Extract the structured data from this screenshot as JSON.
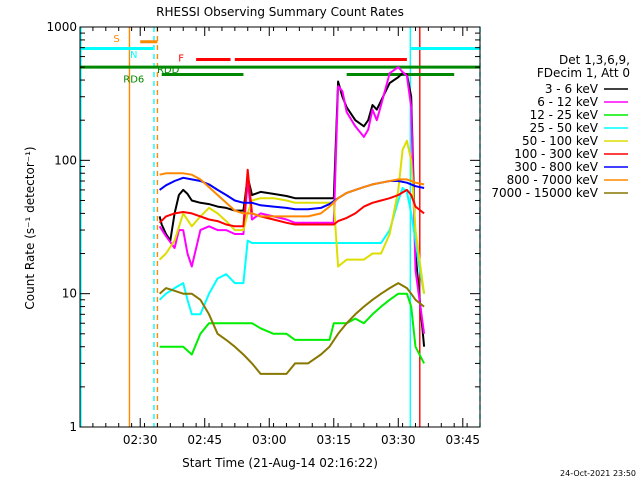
{
  "chart_data": {
    "type": "line",
    "title": "RHESSI Observing Summary Count Rates",
    "xlabel": "Start Time (21-Aug-14 02:16:22)",
    "ylabel": "Count Rate (s⁻¹ detector⁻¹)",
    "y_scale": "log",
    "ylim": [
      1,
      1000
    ],
    "y_ticks": [
      1,
      10,
      100,
      1000
    ],
    "y_tick_labels": [
      "1",
      "10",
      "100",
      "1000"
    ],
    "x_units": "minutes after 02:16:22",
    "xlim": [
      0,
      93
    ],
    "x_ticks": [
      14,
      29,
      44,
      59,
      74,
      89
    ],
    "x_tick_labels": [
      "02:30",
      "02:45",
      "03:00",
      "03:15",
      "03:30",
      "03:45"
    ],
    "legend_header": [
      "Det 1,3,6,9,",
      "FDecim 1, Att 0"
    ],
    "legend_position": "right",
    "series": [
      {
        "name": "3 - 6 keV",
        "color": "#000000",
        "x": [
          18.5,
          19,
          20,
          21,
          22,
          23,
          24,
          25,
          26,
          28,
          30,
          32,
          34,
          36,
          38,
          39,
          40,
          42,
          45,
          48,
          50,
          53,
          56,
          58,
          59,
          60,
          61,
          62,
          64,
          66,
          67,
          68,
          69,
          70,
          72,
          74,
          75,
          76,
          77,
          78,
          80
        ],
        "y": [
          38,
          33,
          28,
          25,
          40,
          55,
          60,
          56,
          50,
          48,
          47,
          45,
          44,
          42,
          42,
          75,
          55,
          58,
          56,
          54,
          52,
          52,
          52,
          52,
          52,
          390,
          300,
          250,
          200,
          180,
          200,
          260,
          240,
          280,
          380,
          420,
          450,
          440,
          300,
          20,
          4
        ]
      },
      {
        "name": "6 - 12 keV",
        "color": "#ff00ff",
        "x": [
          18.5,
          20,
          22,
          23,
          24,
          25,
          26,
          28,
          30,
          32,
          34,
          36,
          38,
          39,
          40,
          42,
          45,
          48,
          50,
          53,
          56,
          58,
          59,
          60,
          61,
          62,
          64,
          66,
          67,
          68,
          69,
          70,
          72,
          74,
          75,
          76,
          77,
          78,
          80
        ],
        "y": [
          32,
          27,
          22,
          30,
          30,
          20,
          16,
          30,
          32,
          30,
          30,
          28,
          28,
          70,
          36,
          40,
          38,
          36,
          34,
          34,
          34,
          34,
          34,
          360,
          330,
          230,
          180,
          150,
          170,
          240,
          200,
          260,
          450,
          500,
          460,
          430,
          250,
          15,
          5
        ]
      },
      {
        "name": "12 - 25 keV",
        "color": "#00ee00",
        "x": [
          18.5,
          20,
          22,
          24,
          26,
          28,
          30,
          32,
          34,
          36,
          38,
          40,
          42,
          45,
          48,
          50,
          53,
          56,
          58,
          59,
          60,
          62,
          64,
          66,
          68,
          70,
          72,
          74,
          76,
          77,
          78,
          80
        ],
        "y": [
          4,
          4,
          4,
          4,
          3.5,
          5,
          6,
          6,
          6,
          6,
          6,
          6,
          5.5,
          5,
          5,
          4.5,
          4.5,
          4.5,
          4.5,
          6,
          6,
          6,
          6.5,
          6,
          7,
          8,
          9,
          10,
          10,
          8,
          4,
          3
        ]
      },
      {
        "name": "25 - 50 keV",
        "color": "#00ffff",
        "x": [
          18.5,
          20,
          22,
          24,
          25,
          26,
          28,
          30,
          32,
          34,
          36,
          38,
          39,
          40,
          42,
          45,
          48,
          50,
          53,
          56,
          58,
          59,
          60,
          62,
          64,
          66,
          68,
          70,
          72,
          74,
          75,
          76,
          77,
          78,
          79,
          80
        ],
        "y": [
          9,
          10,
          11,
          12,
          9,
          7,
          7,
          10,
          13,
          14,
          12,
          12,
          25,
          24,
          24,
          24,
          24,
          24,
          24,
          24,
          24,
          24,
          24,
          24,
          24,
          24,
          24,
          24,
          30,
          50,
          62,
          58,
          40,
          25,
          15,
          10
        ]
      },
      {
        "name": "50 - 100 keV",
        "color": "#dddd00",
        "x": [
          18.5,
          20,
          22,
          24,
          26,
          28,
          30,
          32,
          34,
          36,
          38,
          39,
          40,
          42,
          45,
          48,
          50,
          53,
          56,
          58,
          59,
          60,
          62,
          64,
          66,
          68,
          70,
          72,
          74,
          75,
          76,
          77,
          78,
          80
        ],
        "y": [
          18,
          20,
          25,
          40,
          32,
          38,
          44,
          40,
          35,
          30,
          30,
          40,
          50,
          52,
          52,
          50,
          48,
          48,
          48,
          48,
          48,
          16,
          18,
          18,
          18,
          20,
          20,
          28,
          60,
          120,
          140,
          100,
          30,
          10
        ]
      },
      {
        "name": "100 - 300 keV",
        "color": "#ff0000",
        "x": [
          18.5,
          20,
          22,
          24,
          26,
          28,
          30,
          32,
          34,
          36,
          38,
          39,
          40,
          42,
          45,
          48,
          50,
          53,
          56,
          58,
          59,
          60,
          62,
          64,
          66,
          68,
          70,
          72,
          74,
          76,
          77,
          78,
          80
        ],
        "y": [
          34,
          38,
          40,
          41,
          40,
          38,
          36,
          35,
          33,
          32,
          32,
          85,
          40,
          38,
          36,
          34,
          33,
          33,
          33,
          33,
          33,
          35,
          37,
          40,
          45,
          48,
          50,
          52,
          55,
          60,
          55,
          45,
          40
        ]
      },
      {
        "name": "300 - 800 keV",
        "color": "#0000ff",
        "x": [
          18.5,
          20,
          22,
          24,
          26,
          28,
          30,
          32,
          34,
          36,
          38,
          40,
          42,
          45,
          48,
          50,
          53,
          56,
          58,
          60,
          62,
          64,
          66,
          68,
          70,
          72,
          74,
          76,
          77,
          78,
          80
        ],
        "y": [
          60,
          65,
          70,
          74,
          72,
          70,
          66,
          60,
          55,
          50,
          48,
          48,
          46,
          45,
          44,
          43,
          43,
          44,
          47,
          52,
          57,
          60,
          63,
          66,
          68,
          70,
          70,
          68,
          66,
          64,
          62
        ]
      },
      {
        "name": "800 - 7000 keV",
        "color": "#ff8800",
        "x": [
          18.5,
          20,
          22,
          24,
          26,
          28,
          30,
          32,
          34,
          36,
          38,
          40,
          42,
          45,
          48,
          50,
          53,
          56,
          58,
          60,
          62,
          64,
          66,
          68,
          70,
          72,
          74,
          76,
          77,
          78,
          80
        ],
        "y": [
          78,
          80,
          80,
          80,
          78,
          72,
          63,
          55,
          48,
          42,
          40,
          40,
          38,
          38,
          38,
          38,
          38,
          40,
          45,
          52,
          57,
          60,
          63,
          66,
          68,
          70,
          72,
          72,
          70,
          68,
          66
        ]
      },
      {
        "name": "7000 - 15000 keV",
        "color": "#887700",
        "x": [
          18.5,
          20,
          22,
          24,
          26,
          28,
          30,
          32,
          34,
          36,
          38,
          40,
          42,
          45,
          48,
          50,
          53,
          56,
          58,
          60,
          62,
          64,
          66,
          68,
          70,
          72,
          74,
          76,
          77,
          78,
          80
        ],
        "y": [
          10,
          11,
          10.5,
          10,
          10,
          9,
          7,
          5,
          4.5,
          4,
          3.5,
          3,
          2.5,
          2.5,
          2.5,
          3,
          3,
          3.5,
          4,
          5,
          6,
          7,
          8,
          9,
          10,
          11,
          12,
          11,
          10,
          9,
          8
        ]
      }
    ],
    "state_bars": [
      {
        "label": "S",
        "color": "#ff8800",
        "x_start": 14,
        "x_end": 18,
        "y": 775
      },
      {
        "label": "N",
        "color": "#00ffff",
        "x_start": 0,
        "x_end": 17,
        "y": 690
      },
      {
        "label": "N",
        "color": "#00ffff",
        "x_start": 77,
        "x_end": 93,
        "y": 690
      },
      {
        "label": "F",
        "color": "#ff0000",
        "x_start": 27,
        "x_end": 35,
        "y": 570
      },
      {
        "label": "F",
        "color": "#ff0000",
        "x_start": 36,
        "x_end": 76,
        "y": 570
      },
      {
        "label": "RDD",
        "color": "#008800",
        "x_start": 0,
        "x_end": 93,
        "y": 500
      },
      {
        "label": "RD6",
        "color": "#008800",
        "x_start": 19,
        "x_end": 38,
        "y": 440
      },
      {
        "label": "RD6",
        "color": "#008800",
        "x_start": 62,
        "x_end": 87,
        "y": 440
      }
    ],
    "state_bar_label_positions": [
      {
        "label": "S",
        "x": 8.5,
        "y": 830,
        "color": "#ff8800"
      },
      {
        "label": "N",
        "x": 12.5,
        "y": 630,
        "color": "#00ffff"
      },
      {
        "label": "F",
        "x": 23.5,
        "y": 590,
        "color": "#ff0000"
      },
      {
        "label": "RDD",
        "x": 20.5,
        "y": 485,
        "color": "#008800"
      },
      {
        "label": "RD6",
        "x": 12.5,
        "y": 410,
        "color": "#008800"
      }
    ],
    "vertical_lines": [
      {
        "x": 11.5,
        "color": "#ff8800",
        "style": "solid"
      },
      {
        "x": 18,
        "color": "#ff8800",
        "style": "dashed"
      },
      {
        "x": 17.2,
        "color": "#00ffff",
        "style": "dashed"
      },
      {
        "x": 0.2,
        "color": "#00ffff",
        "style": "solid"
      },
      {
        "x": 76.8,
        "color": "#00ffff",
        "style": "solid"
      },
      {
        "x": 79,
        "color": "#ff0000",
        "style": "solid"
      },
      {
        "x": 93,
        "color": "#00ffff",
        "style": "dashed"
      }
    ],
    "grid": false
  },
  "footer_date": "24-Oct-2021 23:50"
}
